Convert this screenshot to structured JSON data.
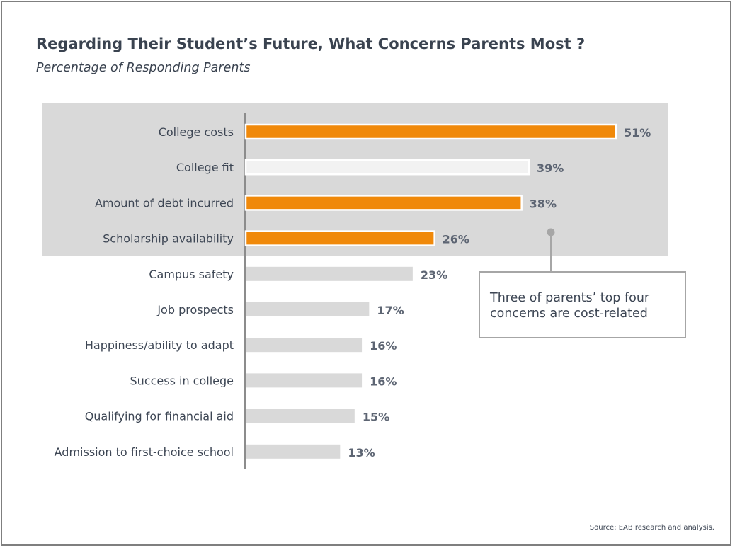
{
  "chart_data": {
    "type": "bar",
    "orientation": "horizontal",
    "title": "Regarding Their Student’s Future, What Concerns Parents Most ?",
    "subtitle": "Percentage of Responding Parents",
    "categories": [
      "College costs",
      "College fit",
      "Amount of debt incurred",
      "Scholarship availability",
      "Campus safety",
      "Job prospects",
      "Happiness/ability to adapt",
      "Success in college",
      "Qualifying for financial aid",
      "Admission to first-choice school"
    ],
    "values": [
      51,
      39,
      38,
      26,
      23,
      17,
      16,
      16,
      15,
      13
    ],
    "value_labels": [
      "51%",
      "39%",
      "38%",
      "26%",
      "23%",
      "17%",
      "16%",
      "16%",
      "15%",
      "13%"
    ],
    "highlighted": [
      true,
      false,
      true,
      true,
      false,
      false,
      false,
      false,
      false,
      false
    ],
    "highlight_region_rows": 4,
    "xlim": [
      0,
      51
    ],
    "grid": false,
    "colors": {
      "highlight": "#f0890a",
      "bar": "#d9d9d9",
      "top_region": "#d9d9d9",
      "axis": "#8c8c8c",
      "callout_marker": "#a6a6a6"
    },
    "annotation": "Three of parents’ top four concerns are cost-related",
    "source": "Source: EAB research and analysis."
  }
}
